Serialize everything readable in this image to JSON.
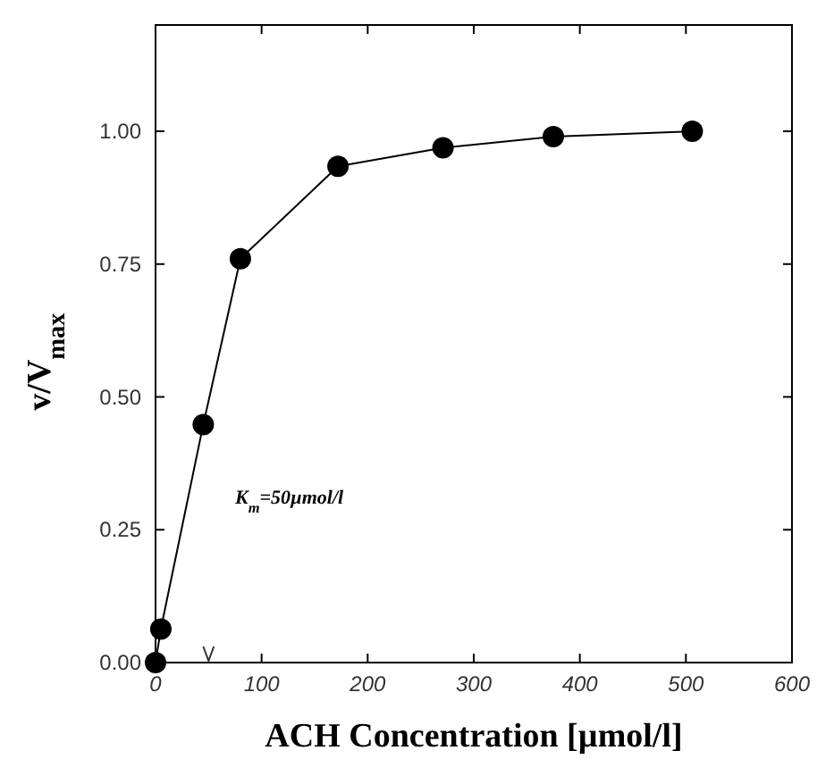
{
  "chart_data": {
    "type": "line",
    "xlabel": "ACH Concentration  [µmol/l]",
    "ylabel": "v/V$_{max}$",
    "x": [
      0,
      5,
      45,
      80,
      172,
      271,
      375,
      506
    ],
    "series": [
      {
        "color": "#000000",
        "values": [
          0,
          0.063,
          0.448,
          0.76,
          0.934,
          0.969,
          0.99,
          1.0
        ]
      }
    ],
    "xlim": [
      0,
      600
    ],
    "xticks": [
      0,
      100,
      200,
      300,
      400,
      500,
      600
    ],
    "ylim": [
      0,
      1.2
    ],
    "yticks": [
      {
        "value": 0,
        "label": "0.00"
      },
      {
        "value": 0.25,
        "label": "0.25"
      },
      {
        "value": 0.5,
        "label": "0.50"
      },
      {
        "value": 0.75,
        "label": "0.75"
      },
      {
        "value": 1,
        "label": "1.00"
      }
    ],
    "marker": "circle",
    "line_style": "solid",
    "grid": false,
    "annotations": [
      "K$_{m}$=50µmol/l"
    ]
  }
}
